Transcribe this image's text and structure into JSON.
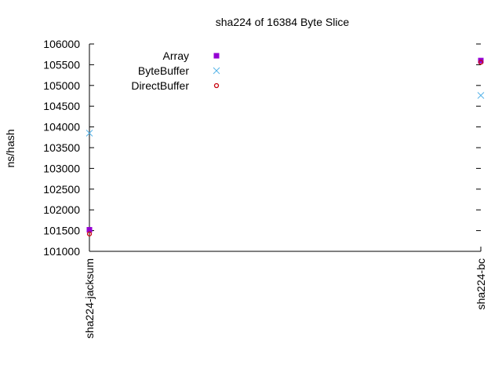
{
  "chart_data": {
    "type": "scatter",
    "title": "sha224 of 16384 Byte Slice",
    "xlabel": "",
    "ylabel": "ns/hash",
    "categories": [
      "sha224-jacksum",
      "sha224-bc"
    ],
    "ylim": [
      101000,
      106000
    ],
    "yticks": [
      101000,
      101500,
      102000,
      102500,
      103000,
      103500,
      104000,
      104500,
      105000,
      105500,
      106000
    ],
    "grid": false,
    "legend_position": "top-left",
    "series": [
      {
        "name": "Array",
        "marker": "filled-square",
        "color": "#9400d3",
        "values": [
          101520,
          105600
        ]
      },
      {
        "name": "ByteBuffer",
        "marker": "x",
        "color": "#56b4e9",
        "values": [
          103850,
          104760
        ]
      },
      {
        "name": "DirectBuffer",
        "marker": "circle",
        "color": "#c8000c",
        "values": [
          101420,
          105560
        ]
      }
    ]
  }
}
